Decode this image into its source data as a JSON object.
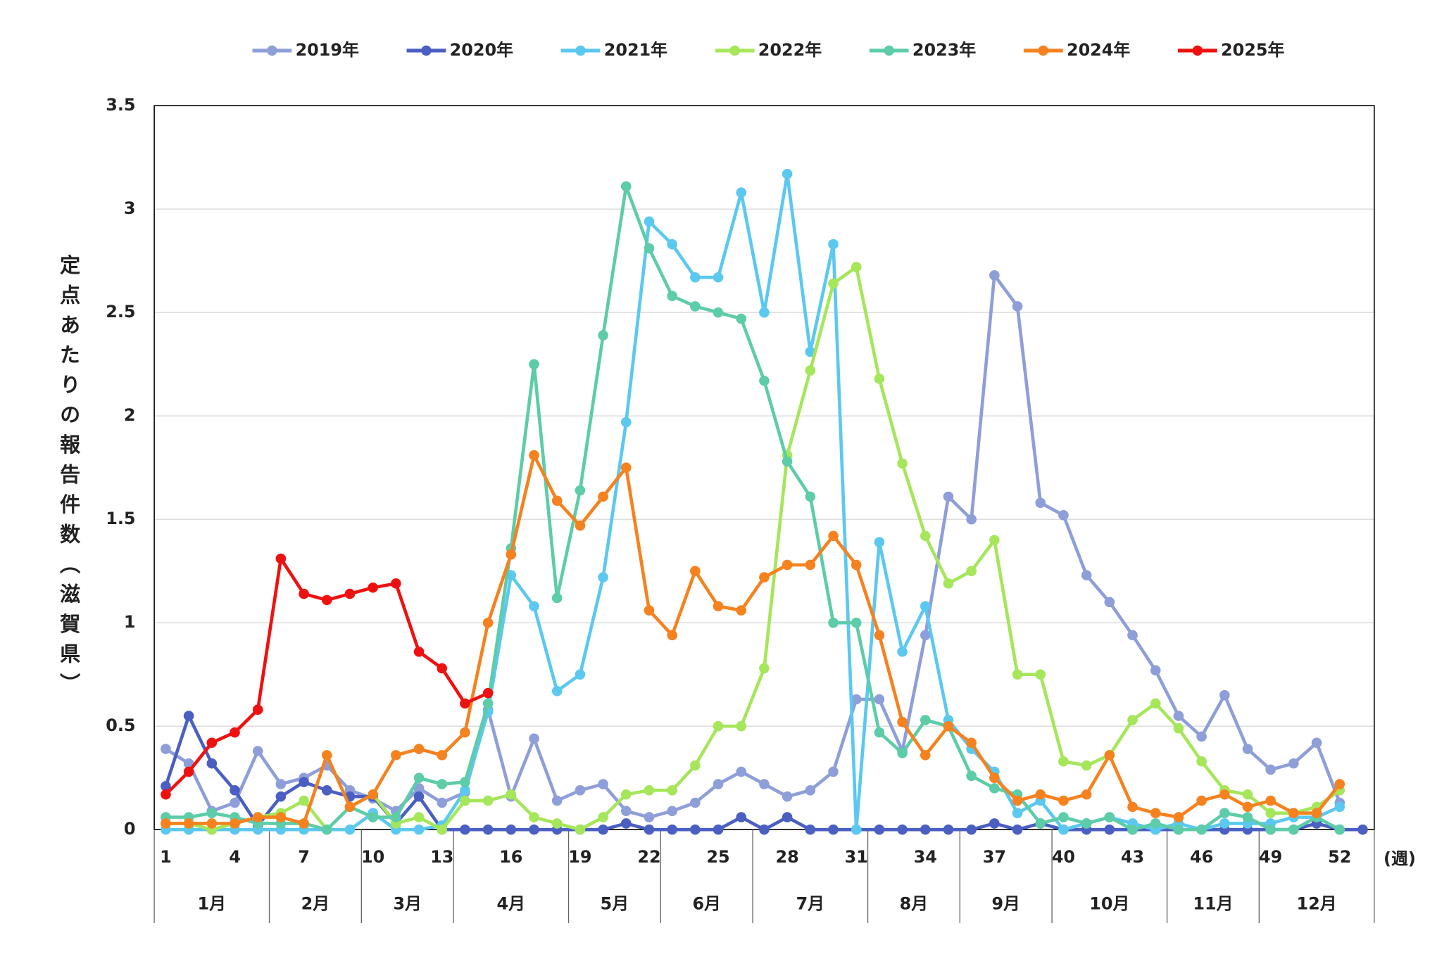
{
  "chart_data": {
    "type": "line",
    "y_label": "定点あたりの報告件数（滋賀県）",
    "x_unit_label": "(週)",
    "x": [
      1,
      2,
      3,
      4,
      5,
      6,
      7,
      8,
      9,
      10,
      11,
      12,
      13,
      14,
      15,
      16,
      17,
      18,
      19,
      20,
      21,
      22,
      23,
      24,
      25,
      26,
      27,
      28,
      29,
      30,
      31,
      32,
      33,
      34,
      35,
      36,
      37,
      38,
      39,
      40,
      41,
      42,
      43,
      44,
      45,
      46,
      47,
      48,
      49,
      50,
      51,
      52,
      53
    ],
    "xlim": [
      0.5,
      53.5
    ],
    "xticks": [
      1,
      4,
      7,
      10,
      13,
      16,
      19,
      22,
      25,
      28,
      31,
      34,
      37,
      40,
      43,
      46,
      49,
      52
    ],
    "months": [
      "1月",
      "2月",
      "3月",
      "4月",
      "5月",
      "6月",
      "7月",
      "8月",
      "9月",
      "10月",
      "11月",
      "12月"
    ],
    "month_last_weeks": [
      5,
      9,
      13,
      18,
      22,
      26,
      31,
      35,
      39,
      44,
      48,
      53
    ],
    "ylim": [
      0,
      3.5
    ],
    "yticks": [
      0,
      0.5,
      1,
      1.5,
      2,
      2.5,
      3,
      3.5
    ],
    "grid": true,
    "legend": "top",
    "series": [
      {
        "name": "2019年",
        "color": "#8E9ED9",
        "values": [
          0.39,
          0.32,
          0.09,
          0.13,
          0.38,
          0.22,
          0.25,
          0.31,
          0.19,
          0.15,
          0.09,
          0.2,
          0.13,
          0.18,
          0.58,
          0.16,
          0.44,
          0.14,
          0.19,
          0.22,
          0.09,
          0.06,
          0.09,
          0.13,
          0.22,
          0.28,
          0.22,
          0.16,
          0.19,
          0.28,
          0.63,
          0.63,
          0.38,
          0.94,
          1.61,
          1.5,
          2.68,
          2.53,
          1.58,
          1.52,
          1.23,
          1.1,
          0.94,
          0.77,
          0.55,
          0.45,
          0.65,
          0.39,
          0.29,
          0.32,
          0.42,
          0.13,
          null
        ]
      },
      {
        "name": "2020年",
        "color": "#4A5FC1",
        "values": [
          0.21,
          0.55,
          0.32,
          0.19,
          0.02,
          0.16,
          0.23,
          0.19,
          0.16,
          0.16,
          0.03,
          0.16,
          0,
          0,
          0,
          0,
          0,
          0,
          0,
          0,
          0.03,
          0,
          0,
          0,
          0,
          0.06,
          0,
          0.06,
          0,
          0,
          0,
          0,
          0,
          0,
          0,
          0,
          0.03,
          0,
          0.03,
          0,
          0,
          0,
          0,
          0,
          0,
          0,
          0,
          0,
          0,
          0,
          0.03,
          0,
          0
        ]
      },
      {
        "name": "2021年",
        "color": "#5BC8F0",
        "values": [
          0,
          0,
          0,
          0,
          0,
          0,
          0,
          0,
          0,
          0.08,
          0,
          0,
          0.02,
          0.19,
          0.57,
          1.23,
          1.08,
          0.67,
          0.75,
          1.22,
          1.97,
          2.94,
          2.83,
          2.67,
          2.67,
          3.08,
          2.5,
          3.17,
          2.31,
          2.83,
          0,
          1.39,
          0.86,
          1.08,
          0.53,
          0.39,
          0.28,
          0.08,
          0.14,
          0,
          0.03,
          0.06,
          0.03,
          0,
          0.03,
          0,
          0.03,
          0.03,
          0.03,
          0.06,
          0.06,
          0.11,
          null
        ]
      },
      {
        "name": "2022年",
        "color": "#A5E65A",
        "values": [
          0.03,
          0.03,
          0,
          0.03,
          0.06,
          0.08,
          0.14,
          0,
          0.11,
          0.17,
          0.03,
          0.06,
          0,
          0.14,
          0.14,
          0.17,
          0.06,
          0.03,
          0,
          0.06,
          0.17,
          0.19,
          0.19,
          0.31,
          0.5,
          0.5,
          0.78,
          1.81,
          2.22,
          2.64,
          2.72,
          2.18,
          1.77,
          1.42,
          1.19,
          1.25,
          1.4,
          0.75,
          0.75,
          0.33,
          0.31,
          0.36,
          0.53,
          0.61,
          0.49,
          0.33,
          0.19,
          0.17,
          0.08,
          0.08,
          0.11,
          0.19,
          null
        ]
      },
      {
        "name": "2023年",
        "color": "#5DCCA8",
        "values": [
          0.06,
          0.06,
          0.08,
          0.06,
          0.03,
          0.03,
          0.03,
          0,
          0.11,
          0.06,
          0.06,
          0.25,
          0.22,
          0.23,
          0.61,
          1.36,
          2.25,
          1.12,
          1.64,
          2.39,
          3.11,
          2.81,
          2.58,
          2.53,
          2.5,
          2.47,
          2.17,
          1.78,
          1.61,
          1,
          1,
          0.47,
          0.37,
          0.53,
          0.5,
          0.26,
          0.2,
          0.17,
          0.03,
          0.06,
          0.03,
          0.06,
          0,
          0.03,
          0,
          0,
          0.08,
          0.06,
          0,
          0,
          0.06,
          0,
          null
        ]
      },
      {
        "name": "2024年",
        "color": "#F5821F",
        "values": [
          0.03,
          0.03,
          0.03,
          0.03,
          0.06,
          0.06,
          0.03,
          0.36,
          0.11,
          0.17,
          0.36,
          0.39,
          0.36,
          0.47,
          1,
          1.33,
          1.81,
          1.59,
          1.47,
          1.61,
          1.75,
          1.06,
          0.94,
          1.25,
          1.08,
          1.06,
          1.22,
          1.28,
          1.28,
          1.42,
          1.28,
          0.94,
          0.52,
          0.36,
          0.5,
          0.42,
          0.25,
          0.14,
          0.17,
          0.14,
          0.17,
          0.36,
          0.11,
          0.08,
          0.06,
          0.14,
          0.17,
          0.11,
          0.14,
          0.08,
          0.08,
          0.22,
          null
        ]
      },
      {
        "name": "2025年",
        "color": "#EE1111",
        "values": [
          0.17,
          0.28,
          0.42,
          0.47,
          0.58,
          1.31,
          1.14,
          1.11,
          1.14,
          1.17,
          1.19,
          0.86,
          0.78,
          0.61,
          0.66,
          null,
          null,
          null,
          null,
          null,
          null,
          null,
          null,
          null,
          null,
          null,
          null,
          null,
          null,
          null,
          null,
          null,
          null,
          null,
          null,
          null,
          null,
          null,
          null,
          null,
          null,
          null,
          null,
          null,
          null,
          null,
          null,
          null,
          null,
          null,
          null,
          null,
          null
        ]
      }
    ]
  }
}
